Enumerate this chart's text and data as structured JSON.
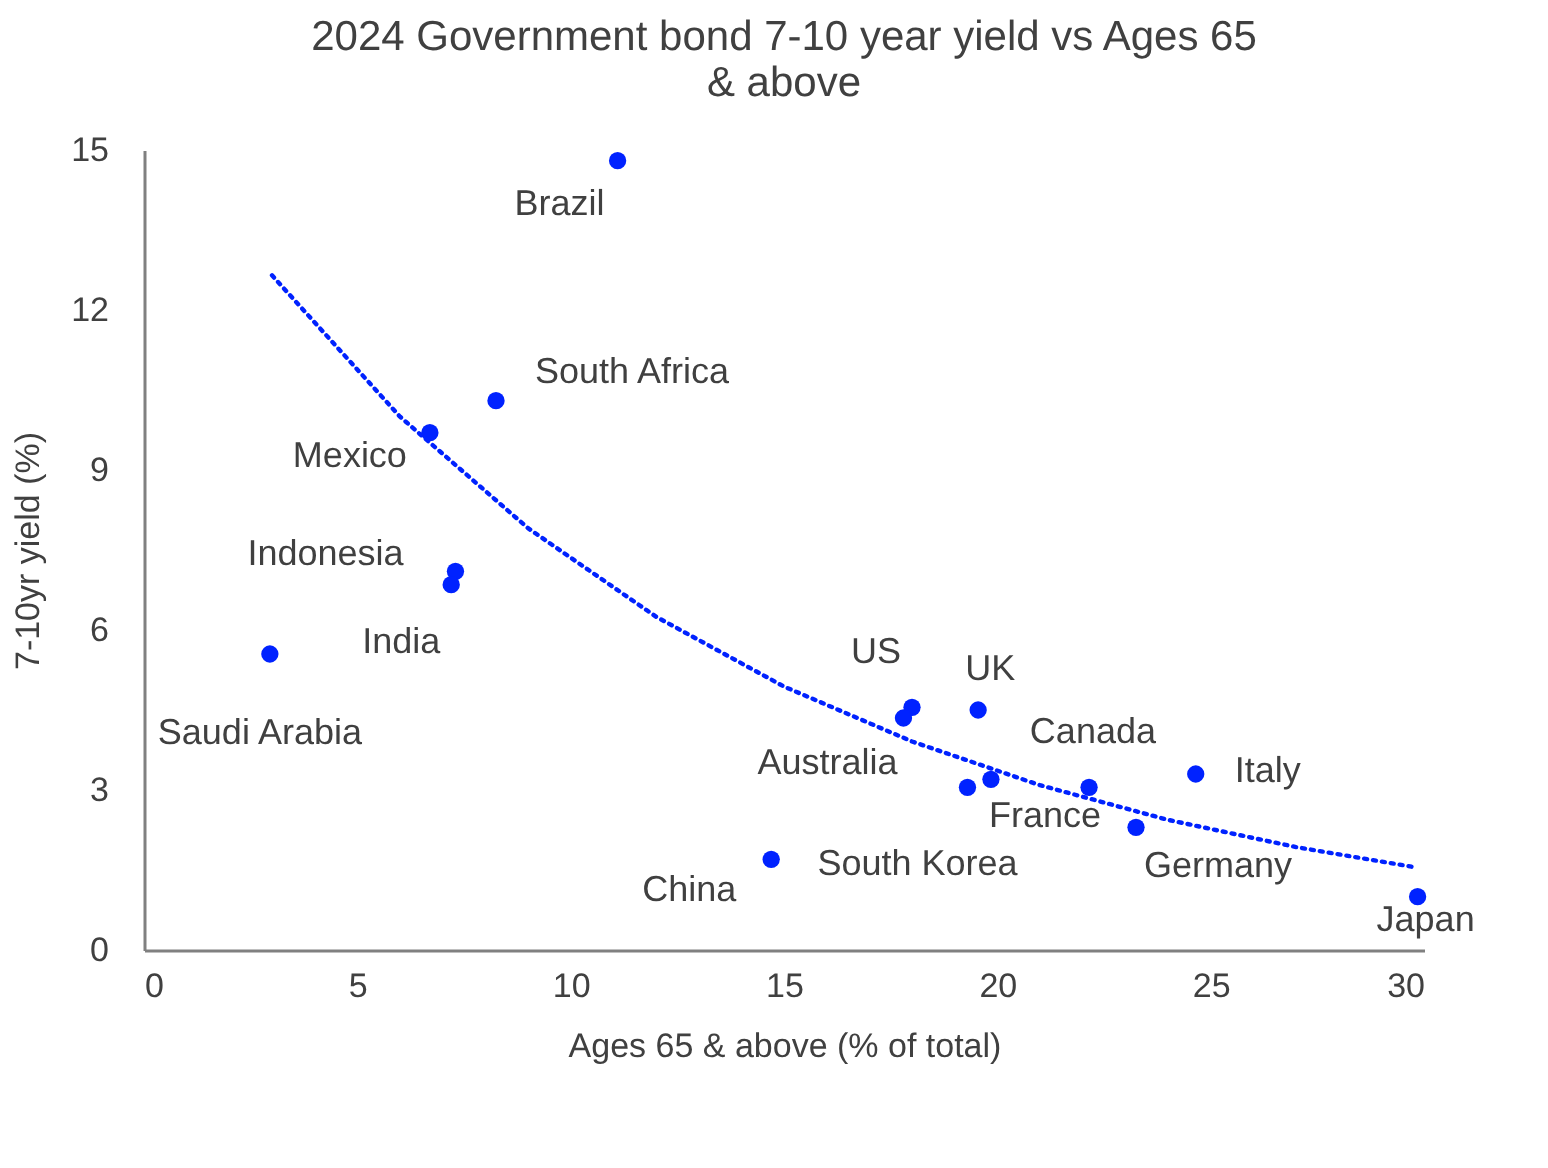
{
  "chart_data": {
    "type": "scatter",
    "title": "2024 Government bond 7-10 year yield vs Ages 65 & above",
    "xlabel": "Ages 65 & above (% of total)",
    "ylabel": "7-10yr yield (%)",
    "xlim": [
      0,
      30
    ],
    "xticks": [
      0,
      5,
      10,
      15,
      20,
      25,
      30
    ],
    "ylim": [
      0,
      15
    ],
    "yticks": [
      0,
      3,
      6,
      9,
      12,
      15
    ],
    "marker": "circle",
    "series": [
      {
        "color": "#0022ff",
        "x": [
          11.1,
          8.25,
          6.7,
          7.3,
          7.2,
          2.95,
          18.0,
          19.55,
          17.8,
          19.85,
          24.65,
          22.15,
          23.25,
          14.7,
          19.3,
          29.85
        ],
        "values": [
          14.8,
          10.3,
          9.7,
          7.1,
          6.85,
          5.55,
          4.55,
          4.5,
          4.35,
          3.2,
          3.3,
          3.05,
          2.3,
          1.7,
          3.05,
          1.0
        ]
      },
      {
        "type": "line",
        "color": "#0022ff",
        "line_style": "dotted",
        "marker": "none",
        "x": [
          3,
          6,
          9,
          12,
          15,
          18,
          21,
          24,
          27,
          29.8
        ],
        "values": [
          12.65,
          10.0,
          7.91,
          6.25,
          4.94,
          3.91,
          3.09,
          2.44,
          1.93,
          1.55
        ]
      }
    ],
    "annotations": [
      {
        "text": "Brazil",
        "x": 11.1,
        "y": 14.8
      },
      {
        "text": "South Africa",
        "x": 8.25,
        "y": 10.3
      },
      {
        "text": "Mexico",
        "x": 6.7,
        "y": 9.7
      },
      {
        "text": "Indonesia",
        "x": 7.3,
        "y": 7.1
      },
      {
        "text": "India",
        "x": 7.2,
        "y": 6.85
      },
      {
        "text": "Saudi Arabia",
        "x": 2.95,
        "y": 5.55
      },
      {
        "text": "US",
        "x": 18.0,
        "y": 4.55
      },
      {
        "text": "UK",
        "x": 19.55,
        "y": 4.5
      },
      {
        "text": "Australia",
        "x": 17.8,
        "y": 4.35
      },
      {
        "text": "Canada",
        "x": 19.85,
        "y": 3.2
      },
      {
        "text": "Italy",
        "x": 24.65,
        "y": 3.3
      },
      {
        "text": "France",
        "x": 22.15,
        "y": 3.05
      },
      {
        "text": "Germany",
        "x": 23.25,
        "y": 2.3
      },
      {
        "text": "China",
        "x": 14.7,
        "y": 1.7
      },
      {
        "text": "South Korea",
        "x": 19.3,
        "y": 3.05
      },
      {
        "text": "Japan",
        "x": 29.85,
        "y": 1.0
      }
    ]
  }
}
